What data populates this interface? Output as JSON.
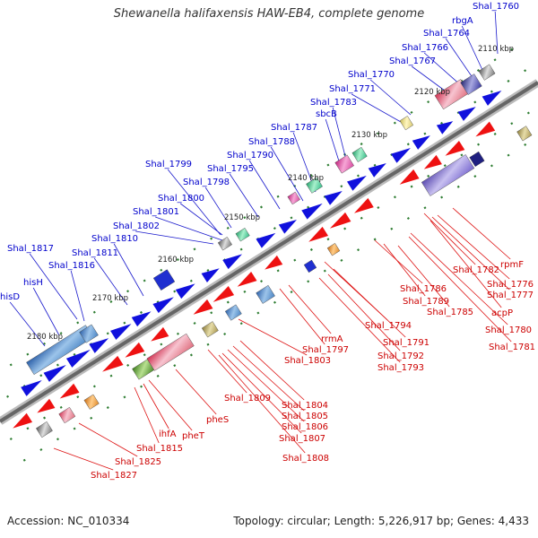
{
  "title": "Shewanella halifaxensis HAW-EB4, complete genome",
  "accession": "Accession: NC_010334",
  "topology": "Topology: circular; Length: 5,226,917 bp; Genes: 4,433",
  "colors": {
    "forward_label": "#0000cc",
    "reverse_label": "#dd0000",
    "tick": "#2e7d32",
    "backbone": "#777777"
  },
  "scale_labels": [
    "2110 kbp",
    "2120 kbp",
    "2130 kbp",
    "2140 kbp",
    "2150 kbp",
    "2160 kbp",
    "2170 kbp",
    "2180 kbp"
  ],
  "forward_genes": [
    "Shal_1760",
    "rbgA",
    "Shal_1764",
    "Shal_1766",
    "Shal_1767",
    "Shal_1770",
    "Shal_1771",
    "Shal_1783",
    "sbcB",
    "Shal_1787",
    "Shal_1788",
    "Shal_1790",
    "Shal_1795",
    "Shal_1799",
    "Shal_1798",
    "Shal_1800",
    "Shal_1801",
    "Shal_1802",
    "Shal_1810",
    "Shal_1811",
    "Shal_1817",
    "Shal_1816",
    "hisH",
    "hisD"
  ],
  "reverse_genes": [
    "rpmF",
    "Shal_1782",
    "Shal_1776",
    "Shal_1777",
    "acpP",
    "Shal_1786",
    "Shal_1789",
    "Shal_1785",
    "Shal_1780",
    "Shal_1781",
    "Shal_1794",
    "Shal_1791",
    "Shal_1792",
    "Shal_1793",
    "rrmA",
    "Shal_1797",
    "Shal_1803",
    "Shal_1809",
    "Shal_1804",
    "Shal_1805",
    "Shal_1806",
    "Shal_1807",
    "Shal_1808",
    "pheS",
    "pheT",
    "ihfA",
    "Shal_1815",
    "Shal_1825",
    "Shal_1827"
  ]
}
